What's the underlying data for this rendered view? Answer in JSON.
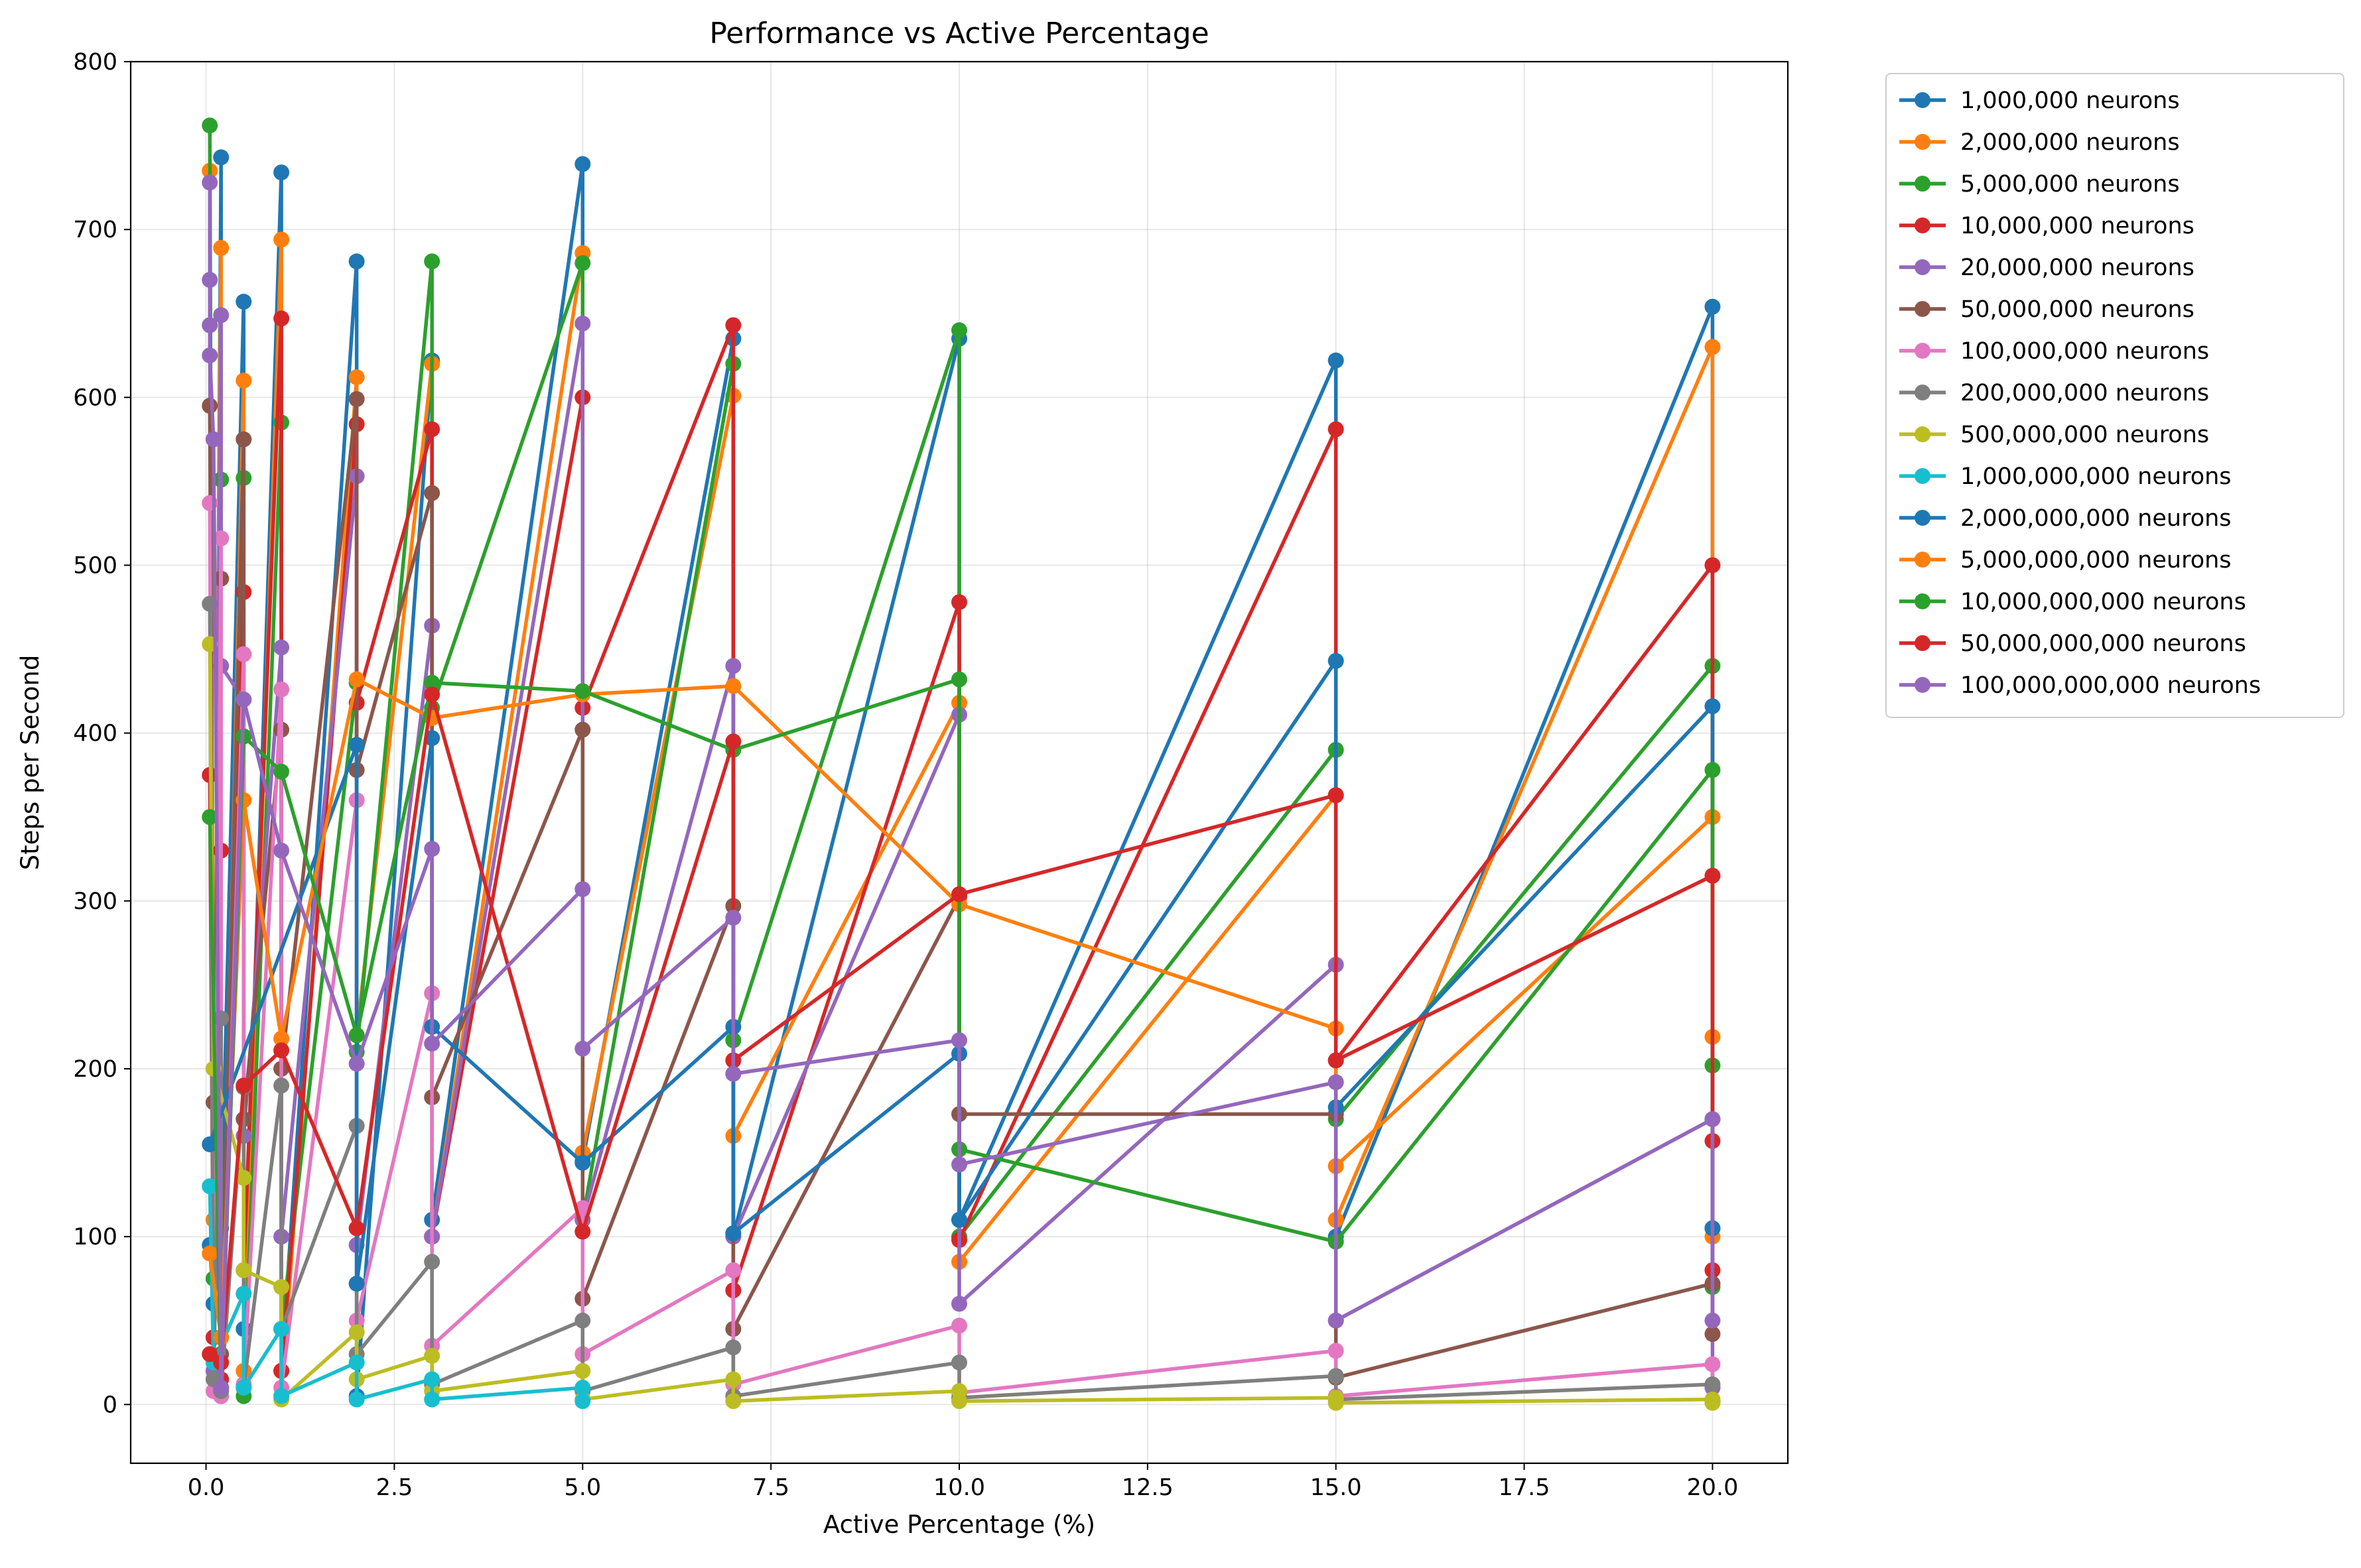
{
  "chart_data": {
    "type": "line",
    "title": "Performance vs Active Percentage",
    "xlabel": "Active Percentage (%)",
    "ylabel": "Steps per Second",
    "xlim": [
      -1.0,
      21.0
    ],
    "ylim": [
      -35,
      800
    ],
    "xticks": [
      0.0,
      2.5,
      5.0,
      7.5,
      10.0,
      12.5,
      15.0,
      17.5,
      20.0
    ],
    "xtick_labels": [
      "0.0",
      "2.5",
      "5.0",
      "7.5",
      "10.0",
      "12.5",
      "15.0",
      "17.5",
      "20.0"
    ],
    "yticks": [
      0,
      100,
      200,
      300,
      400,
      500,
      600,
      700,
      800
    ],
    "ytick_labels": [
      "0",
      "100",
      "200",
      "300",
      "400",
      "500",
      "600",
      "700",
      "800"
    ],
    "grid": true,
    "legend_position": "outside-right",
    "markers": true,
    "series": [
      {
        "name": "1,000,000 neurons",
        "color": "#1f77b4",
        "points": [
          [
            0.05,
            95
          ],
          [
            0.1,
            60
          ],
          [
            0.2,
            743
          ],
          [
            0.2,
            105
          ],
          [
            0.5,
            657
          ],
          [
            0.5,
            45
          ],
          [
            1.0,
            734
          ],
          [
            1.0,
            20
          ],
          [
            2.0,
            681
          ],
          [
            2.0,
            5
          ],
          [
            3.0,
            622
          ],
          [
            3.0,
            110
          ],
          [
            5.0,
            739
          ],
          [
            5.0,
            145
          ],
          [
            7.0,
            635
          ],
          [
            7.0,
            100
          ],
          [
            10.0,
            635
          ],
          [
            10.0,
            110
          ],
          [
            15.0,
            622
          ],
          [
            15.0,
            100
          ],
          [
            20.0,
            654
          ],
          [
            20.0,
            105
          ]
        ]
      },
      {
        "name": "2,000,000 neurons",
        "color": "#ff7f0e",
        "points": [
          [
            0.05,
            735
          ],
          [
            0.1,
            110
          ],
          [
            0.2,
            689
          ],
          [
            0.2,
            10
          ],
          [
            0.5,
            610
          ],
          [
            0.5,
            20
          ],
          [
            1.0,
            694
          ],
          [
            1.0,
            5
          ],
          [
            2.0,
            612
          ],
          [
            2.0,
            220
          ],
          [
            3.0,
            620
          ],
          [
            3.0,
            100
          ],
          [
            5.0,
            686
          ],
          [
            5.0,
            150
          ],
          [
            7.0,
            601
          ],
          [
            7.0,
            160
          ],
          [
            10.0,
            418
          ],
          [
            10.0,
            85
          ],
          [
            15.0,
            363
          ],
          [
            15.0,
            110
          ],
          [
            20.0,
            630
          ],
          [
            20.0,
            100
          ]
        ]
      },
      {
        "name": "5,000,000 neurons",
        "color": "#2ca02c",
        "points": [
          [
            0.05,
            762
          ],
          [
            0.1,
            75
          ],
          [
            0.2,
            551
          ],
          [
            0.2,
            5
          ],
          [
            0.5,
            552
          ],
          [
            0.5,
            5
          ],
          [
            1.0,
            585
          ],
          [
            1.0,
            45
          ],
          [
            2.0,
            430
          ],
          [
            2.0,
            210
          ],
          [
            3.0,
            681
          ],
          [
            3.0,
            415
          ],
          [
            5.0,
            680
          ],
          [
            5.0,
            110
          ],
          [
            7.0,
            620
          ],
          [
            7.0,
            217
          ],
          [
            10.0,
            640
          ],
          [
            10.0,
            100
          ],
          [
            15.0,
            390
          ],
          [
            15.0,
            170
          ],
          [
            20.0,
            440
          ],
          [
            20.0,
            70
          ]
        ]
      },
      {
        "name": "10,000,000 neurons",
        "color": "#d62728",
        "points": [
          [
            0.05,
            375
          ],
          [
            0.1,
            40
          ],
          [
            0.2,
            330
          ],
          [
            0.2,
            15
          ],
          [
            0.5,
            484
          ],
          [
            0.5,
            80
          ],
          [
            1.0,
            647
          ],
          [
            1.0,
            20
          ],
          [
            2.0,
            584
          ],
          [
            2.0,
            418
          ],
          [
            3.0,
            581
          ],
          [
            3.0,
            100
          ],
          [
            5.0,
            600
          ],
          [
            5.0,
            415
          ],
          [
            7.0,
            643
          ],
          [
            7.0,
            68
          ],
          [
            10.0,
            478
          ],
          [
            10.0,
            98
          ],
          [
            15.0,
            581
          ],
          [
            15.0,
            205
          ],
          [
            20.0,
            500
          ],
          [
            20.0,
            80
          ]
        ]
      },
      {
        "name": "20,000,000 neurons",
        "color": "#9467bd",
        "points": [
          [
            0.05,
            643
          ],
          [
            0.1,
            20
          ],
          [
            0.2,
            649
          ],
          [
            0.2,
            440
          ],
          [
            0.5,
            420
          ],
          [
            0.5,
            160
          ],
          [
            1.0,
            451
          ],
          [
            1.0,
            100
          ],
          [
            2.0,
            553
          ],
          [
            2.0,
            95
          ],
          [
            3.0,
            464
          ],
          [
            3.0,
            100
          ],
          [
            5.0,
            644
          ],
          [
            5.0,
            110
          ],
          [
            7.0,
            440
          ],
          [
            7.0,
            100
          ],
          [
            10.0,
            411
          ],
          [
            10.0,
            60
          ],
          [
            15.0,
            262
          ],
          [
            15.0,
            50
          ],
          [
            20.0,
            170
          ],
          [
            20.0,
            10
          ]
        ]
      },
      {
        "name": "50,000,000 neurons",
        "color": "#8c564b",
        "points": [
          [
            0.05,
            595
          ],
          [
            0.1,
            180
          ],
          [
            0.2,
            492
          ],
          [
            0.2,
            30
          ],
          [
            0.5,
            575
          ],
          [
            0.5,
            170
          ],
          [
            1.0,
            402
          ],
          [
            1.0,
            200
          ],
          [
            2.0,
            599
          ],
          [
            2.0,
            378
          ],
          [
            3.0,
            543
          ],
          [
            3.0,
            183
          ],
          [
            5.0,
            402
          ],
          [
            5.0,
            63
          ],
          [
            7.0,
            297
          ],
          [
            7.0,
            45
          ],
          [
            10.0,
            302
          ],
          [
            10.0,
            173
          ],
          [
            15.0,
            173
          ],
          [
            15.0,
            16
          ],
          [
            20.0,
            72
          ],
          [
            20.0,
            42
          ]
        ]
      },
      {
        "name": "100,000,000 neurons",
        "color": "#e377c2",
        "points": [
          [
            0.05,
            537
          ],
          [
            0.1,
            8
          ],
          [
            0.2,
            516
          ],
          [
            0.2,
            5
          ],
          [
            0.5,
            447
          ],
          [
            0.5,
            12
          ],
          [
            1.0,
            426
          ],
          [
            1.0,
            10
          ],
          [
            2.0,
            360
          ],
          [
            2.0,
            50
          ],
          [
            3.0,
            245
          ],
          [
            3.0,
            35
          ],
          [
            5.0,
            117
          ],
          [
            5.0,
            30
          ],
          [
            7.0,
            80
          ],
          [
            7.0,
            12
          ],
          [
            10.0,
            47
          ],
          [
            10.0,
            7
          ],
          [
            15.0,
            32
          ],
          [
            15.0,
            5
          ],
          [
            20.0,
            24
          ],
          [
            20.0,
            2
          ]
        ]
      },
      {
        "name": "200,000,000 neurons",
        "color": "#7f7f7f",
        "points": [
          [
            0.05,
            477
          ],
          [
            0.1,
            15
          ],
          [
            0.2,
            230
          ],
          [
            0.2,
            8
          ],
          [
            0.5,
            189
          ],
          [
            0.5,
            10
          ],
          [
            1.0,
            190
          ],
          [
            1.0,
            45
          ],
          [
            2.0,
            166
          ],
          [
            2.0,
            30
          ],
          [
            3.0,
            85
          ],
          [
            3.0,
            12
          ],
          [
            5.0,
            50
          ],
          [
            5.0,
            8
          ],
          [
            7.0,
            34
          ],
          [
            7.0,
            5
          ],
          [
            10.0,
            25
          ],
          [
            10.0,
            4
          ],
          [
            15.0,
            17
          ],
          [
            15.0,
            3
          ],
          [
            20.0,
            12
          ],
          [
            20.0,
            2
          ]
        ]
      },
      {
        "name": "500,000,000 neurons",
        "color": "#bcbd22",
        "points": [
          [
            0.05,
            453
          ],
          [
            0.1,
            200
          ],
          [
            0.5,
            135
          ],
          [
            0.5,
            80
          ],
          [
            1.0,
            70
          ],
          [
            1.0,
            3
          ],
          [
            2.0,
            43
          ],
          [
            2.0,
            15
          ],
          [
            3.0,
            29
          ],
          [
            3.0,
            8
          ],
          [
            5.0,
            20
          ],
          [
            5.0,
            3
          ],
          [
            7.0,
            15
          ],
          [
            7.0,
            2
          ],
          [
            10.0,
            8
          ],
          [
            10.0,
            2
          ],
          [
            15.0,
            4
          ],
          [
            15.0,
            1
          ],
          [
            20.0,
            3
          ],
          [
            20.0,
            1
          ]
        ]
      },
      {
        "name": "1,000,000,000 neurons",
        "color": "#17becf",
        "points": [
          [
            0.05,
            130
          ],
          [
            0.1,
            25
          ],
          [
            0.5,
            66
          ],
          [
            0.5,
            10
          ],
          [
            1.0,
            45
          ],
          [
            1.0,
            5
          ],
          [
            2.0,
            25
          ],
          [
            2.0,
            3
          ],
          [
            3.0,
            15
          ],
          [
            3.0,
            3
          ],
          [
            5.0,
            10
          ],
          [
            5.0,
            2
          ]
        ]
      },
      {
        "name": "2,000,000,000 neurons",
        "color": "#1f77b4",
        "points": [
          [
            0.05,
            155
          ],
          [
            2.0,
            393
          ],
          [
            2.0,
            72
          ],
          [
            3.0,
            397
          ],
          [
            3.0,
            225
          ],
          [
            5.0,
            144
          ],
          [
            7.0,
            225
          ],
          [
            7.0,
            102
          ],
          [
            10.0,
            209
          ],
          [
            10.0,
            110
          ],
          [
            15.0,
            443
          ],
          [
            15.0,
            177
          ],
          [
            20.0,
            416
          ],
          [
            20.0,
            105
          ]
        ]
      },
      {
        "name": "5,000,000,000 neurons",
        "color": "#ff7f0e",
        "points": [
          [
            0.05,
            90
          ],
          [
            0.2,
            40
          ],
          [
            0.5,
            360
          ],
          [
            1.0,
            218
          ],
          [
            2.0,
            432
          ],
          [
            3.0,
            409
          ],
          [
            5.0,
            423
          ],
          [
            7.0,
            428
          ],
          [
            10.0,
            298
          ],
          [
            15.0,
            224
          ],
          [
            15.0,
            142
          ],
          [
            20.0,
            350
          ],
          [
            20.0,
            219
          ]
        ]
      },
      {
        "name": "10,000,000,000 neurons",
        "color": "#2ca02c",
        "points": [
          [
            0.05,
            350
          ],
          [
            0.2,
            10
          ],
          [
            0.5,
            398
          ],
          [
            1.0,
            377
          ],
          [
            2.0,
            220
          ],
          [
            3.0,
            430
          ],
          [
            5.0,
            425
          ],
          [
            7.0,
            390
          ],
          [
            10.0,
            432
          ],
          [
            10.0,
            152
          ],
          [
            15.0,
            97
          ],
          [
            20.0,
            378
          ],
          [
            20.0,
            202
          ]
        ]
      },
      {
        "name": "50,000,000,000 neurons",
        "color": "#d62728",
        "points": [
          [
            0.05,
            30
          ],
          [
            0.2,
            25
          ],
          [
            0.5,
            190
          ],
          [
            1.0,
            211
          ],
          [
            2.0,
            105
          ],
          [
            3.0,
            423
          ],
          [
            5.0,
            103
          ],
          [
            7.0,
            395
          ],
          [
            7.0,
            205
          ],
          [
            10.0,
            304
          ],
          [
            15.0,
            363
          ],
          [
            15.0,
            205
          ],
          [
            20.0,
            315
          ],
          [
            20.0,
            157
          ]
        ]
      },
      {
        "name": "100,000,000,000 neurons",
        "color": "#9467bd",
        "points": [
          [
            0.05,
            728
          ],
          [
            0.05,
            670
          ],
          [
            0.05,
            625
          ],
          [
            0.1,
            575
          ],
          [
            0.2,
            10
          ],
          [
            0.5,
            420
          ],
          [
            1.0,
            330
          ],
          [
            2.0,
            203
          ],
          [
            3.0,
            331
          ],
          [
            3.0,
            215
          ],
          [
            5.0,
            307
          ],
          [
            5.0,
            212
          ],
          [
            7.0,
            290
          ],
          [
            7.0,
            197
          ],
          [
            10.0,
            217
          ],
          [
            10.0,
            143
          ],
          [
            15.0,
            192
          ],
          [
            15.0,
            50
          ],
          [
            20.0,
            170
          ],
          [
            20.0,
            50
          ]
        ]
      }
    ]
  }
}
